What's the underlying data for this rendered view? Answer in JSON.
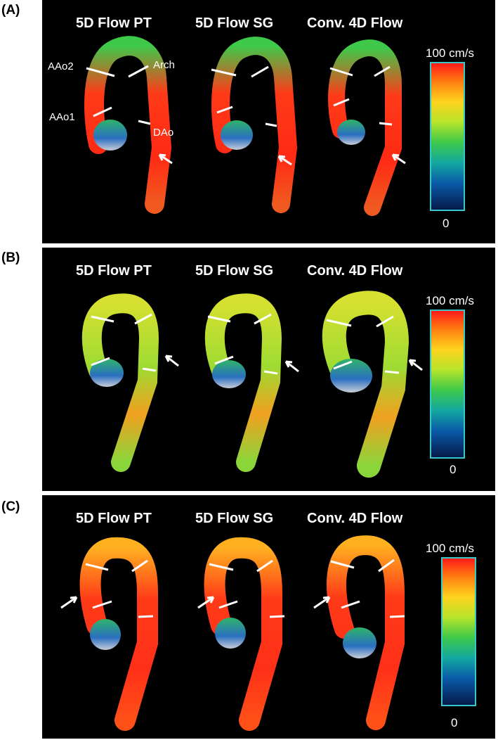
{
  "panels": [
    {
      "letter": "(A)",
      "titles": [
        "5D Flow PT",
        "5D Flow SG",
        "Conv. 4D Flow"
      ],
      "segment_labels": {
        "aao2": "AAo2",
        "aao1": "AAo1",
        "arch": "Arch",
        "dao": "DAo"
      },
      "scale_max": "100 cm/s",
      "scale_min": "0"
    },
    {
      "letter": "(B)",
      "titles": [
        "5D Flow PT",
        "5D Flow SG",
        "Conv. 4D Flow"
      ],
      "scale_max": "100 cm/s",
      "scale_min": "0"
    },
    {
      "letter": "(C)",
      "titles": [
        "5D Flow PT",
        "5D Flow SG",
        "Conv. 4D Flow"
      ],
      "scale_max": "100 cm/s",
      "scale_min": "0"
    }
  ],
  "colors": {
    "velocity_high": "#ff1a1a",
    "velocity_mid": "#b8e52a",
    "velocity_low": "#0a5aa8",
    "colorbar_border": "#36c8c8",
    "marker": "#ffffff"
  }
}
